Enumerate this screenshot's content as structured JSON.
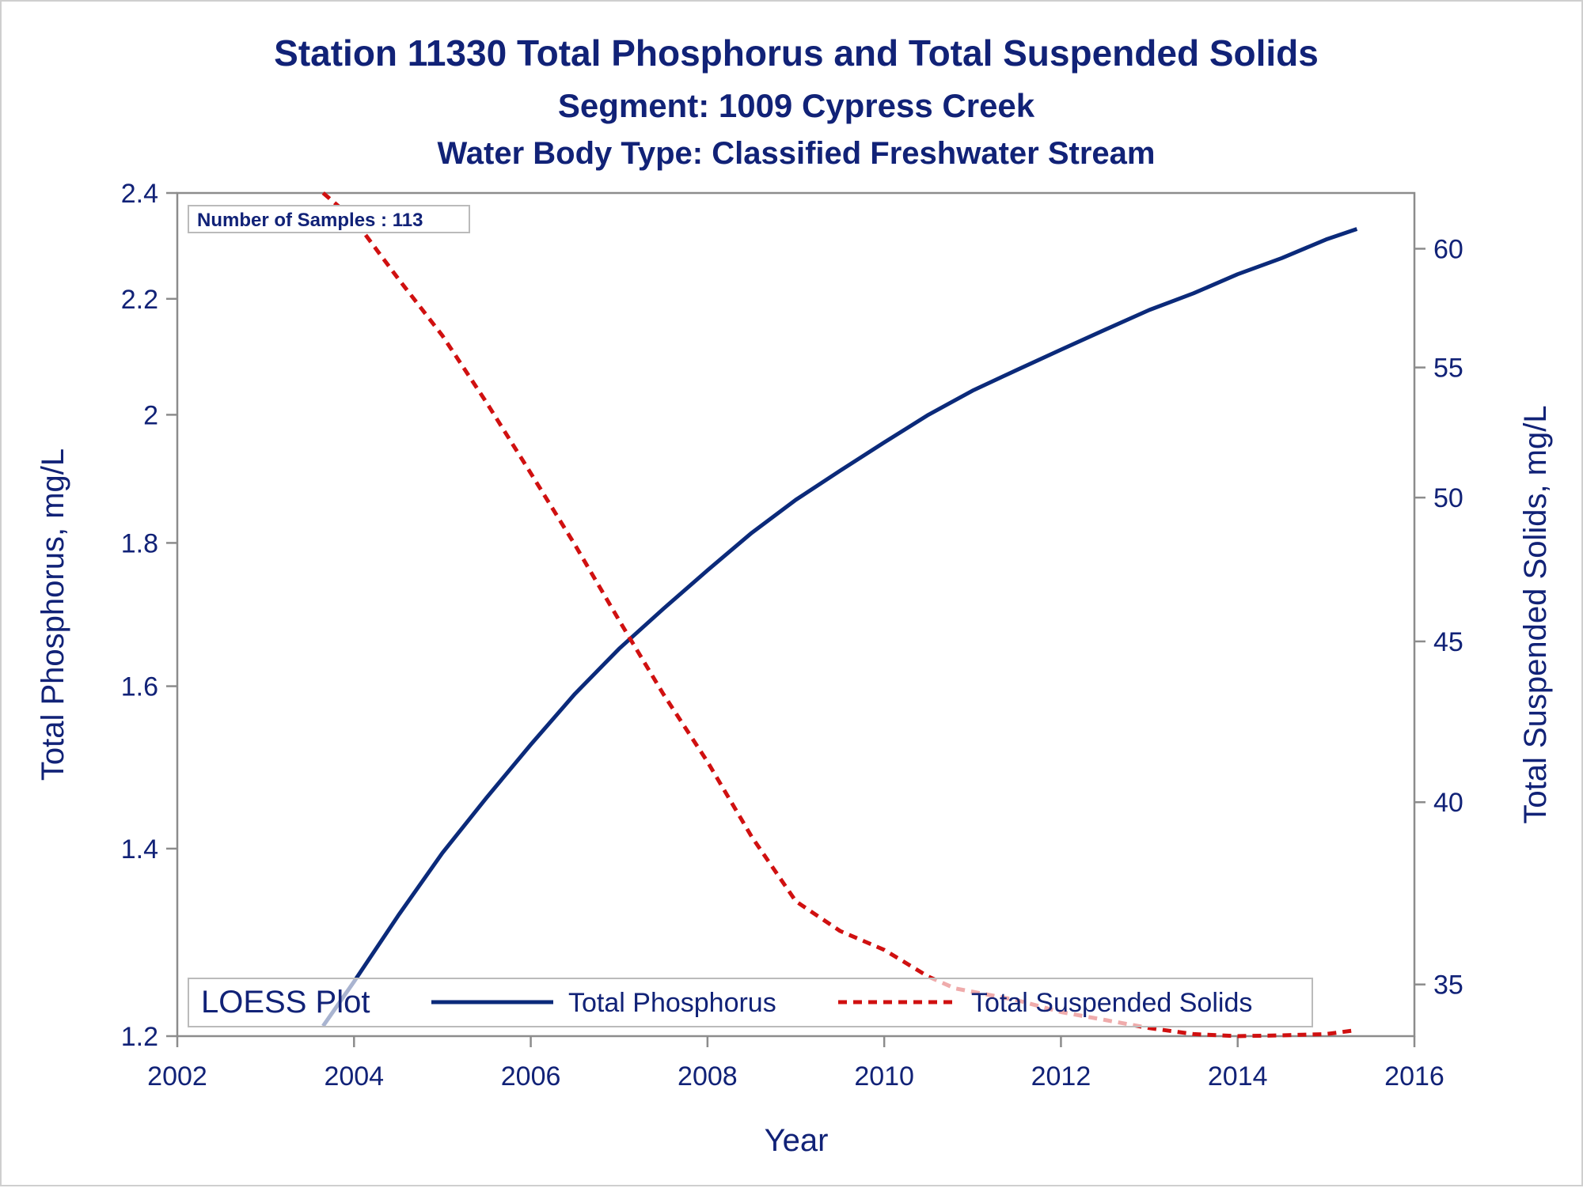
{
  "titles": {
    "line1": "Station 11330  Total Phosphorus and Total Suspended Solids",
    "line2": "Segment: 1009  Cypress Creek",
    "line3": "Water Body Type: Classified Freshwater Stream"
  },
  "annotation": {
    "samples_label": "Number of Samples : 113"
  },
  "legend": {
    "title": "LOESS Plot",
    "items": [
      "Total Phosphorus",
      "Total Suspended Solids"
    ]
  },
  "colors": {
    "text": "#112277",
    "phosphorus": "#0b2a7a",
    "tss": "#d01010",
    "axis": "#8c8c8c"
  },
  "chart_data": {
    "type": "line",
    "title": "Station 11330  Total Phosphorus and Total Suspended Solids",
    "xlabel": "Year",
    "ylabel_left": "Total Phosphorus, mg/L",
    "ylabel_right": "Total Suspended Solids, mg/L",
    "xlim": [
      2002,
      2016
    ],
    "ylim_left": [
      1.2,
      2.4
    ],
    "ylim_right": [
      33.7,
      62.5
    ],
    "left_scale": "log",
    "right_scale": "log",
    "x_ticks": [
      "2002",
      "2004",
      "2006",
      "2008",
      "2010",
      "2012",
      "2014",
      "2016"
    ],
    "y_ticks_left": [
      "1.2",
      "1.4",
      "1.6",
      "1.8",
      "2",
      "2.2",
      "2.4"
    ],
    "y_ticks_right": [
      "35",
      "40",
      "45",
      "50",
      "55",
      "60"
    ],
    "legend_position": "bottom-inside",
    "series": [
      {
        "name": "Total Phosphorus",
        "axis": "left",
        "style": "solid",
        "x": [
          2003.65,
          2004.0,
          2004.5,
          2005.0,
          2005.5,
          2006.0,
          2006.5,
          2007.0,
          2007.5,
          2008.0,
          2008.5,
          2009.0,
          2009.5,
          2010.0,
          2010.5,
          2011.0,
          2011.5,
          2012.0,
          2012.5,
          2013.0,
          2013.5,
          2014.0,
          2014.5,
          2015.0,
          2015.35
        ],
        "y": [
          1.21,
          1.255,
          1.325,
          1.395,
          1.46,
          1.525,
          1.59,
          1.65,
          1.705,
          1.76,
          1.815,
          1.865,
          1.91,
          1.955,
          2.0,
          2.04,
          2.075,
          2.11,
          2.145,
          2.18,
          2.21,
          2.245,
          2.275,
          2.31,
          2.33
        ]
      },
      {
        "name": "Total Suspended Solids",
        "axis": "right",
        "style": "dashed",
        "x": [
          2003.65,
          2004.0,
          2004.5,
          2005.0,
          2005.5,
          2006.0,
          2006.5,
          2007.0,
          2007.5,
          2008.0,
          2008.5,
          2009.0,
          2009.5,
          2010.0,
          2010.5,
          2010.8,
          2011.5,
          2012.0,
          2012.5,
          2013.0,
          2013.5,
          2014.0,
          2014.5,
          2015.0,
          2015.35
        ],
        "y": [
          62.5,
          61.3,
          58.7,
          56.3,
          53.6,
          50.9,
          48.3,
          45.7,
          43.3,
          41.2,
          39.0,
          37.2,
          36.4,
          35.9,
          35.2,
          34.9,
          34.6,
          34.3,
          34.1,
          33.9,
          33.75,
          33.7,
          33.72,
          33.75,
          33.85
        ]
      }
    ]
  }
}
